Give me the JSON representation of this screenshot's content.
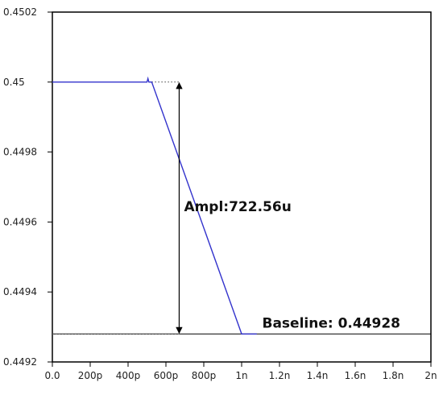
{
  "chart_data": {
    "type": "line",
    "title": "",
    "xlabel": "",
    "ylabel": "",
    "xlim": [
      0,
      2e-09
    ],
    "ylim": [
      0.4492,
      0.4502
    ],
    "x_ticks": [
      {
        "value": 0,
        "label": "0.0"
      },
      {
        "value": 2e-10,
        "label": "200p"
      },
      {
        "value": 4e-10,
        "label": "400p"
      },
      {
        "value": 6e-10,
        "label": "600p"
      },
      {
        "value": 8e-10,
        "label": "800p"
      },
      {
        "value": 1e-09,
        "label": "1n"
      },
      {
        "value": 1.2e-09,
        "label": "1.2n"
      },
      {
        "value": 1.4e-09,
        "label": "1.4n"
      },
      {
        "value": 1.6e-09,
        "label": "1.6n"
      },
      {
        "value": 1.8e-09,
        "label": "1.8n"
      },
      {
        "value": 2e-09,
        "label": "2n"
      }
    ],
    "y_ticks": [
      {
        "value": 0.4492,
        "label": "0.4492"
      },
      {
        "value": 0.4494,
        "label": "0.4494"
      },
      {
        "value": 0.4496,
        "label": "0.4496"
      },
      {
        "value": 0.4498,
        "label": "0.4498"
      },
      {
        "value": 0.45,
        "label": "0.45"
      },
      {
        "value": 0.4502,
        "label": "0.4502"
      }
    ],
    "grid": false,
    "series": [
      {
        "color": "#3333cc",
        "x": [
          0,
          5e-10,
          5.05e-10,
          5.1e-10,
          5.25e-10,
          1e-09,
          1.08e-09
        ],
        "y": [
          0.45,
          0.45,
          0.45001,
          0.45,
          0.45,
          0.44928,
          0.44928
        ]
      }
    ],
    "baseline": {
      "value": 0.44928,
      "label": "Baseline: 0.44928",
      "color": "#000000"
    },
    "top_reference": {
      "value": 0.45,
      "x_start": 5.25e-10,
      "x_end": 6.7e-10
    },
    "amplitude": {
      "label": "Ampl:722.56u",
      "x": 6.7e-10,
      "from": 0.44928,
      "to": 0.45
    }
  }
}
